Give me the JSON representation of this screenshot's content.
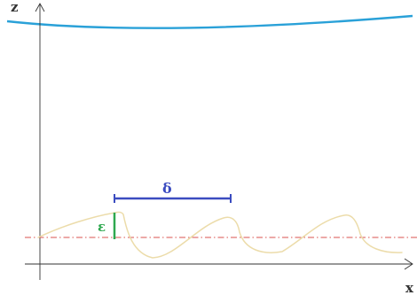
{
  "labels": {
    "z_axis": "z",
    "x_axis": "x",
    "delta": "δ",
    "epsilon": "ε"
  },
  "colors": {
    "axis": "#333333",
    "surface": "#2aa1d8",
    "mean_line": "#d9534f",
    "profile": "#ecdcaa",
    "delta": "#3b4cc0",
    "epsilon": "#2ea84f"
  }
}
